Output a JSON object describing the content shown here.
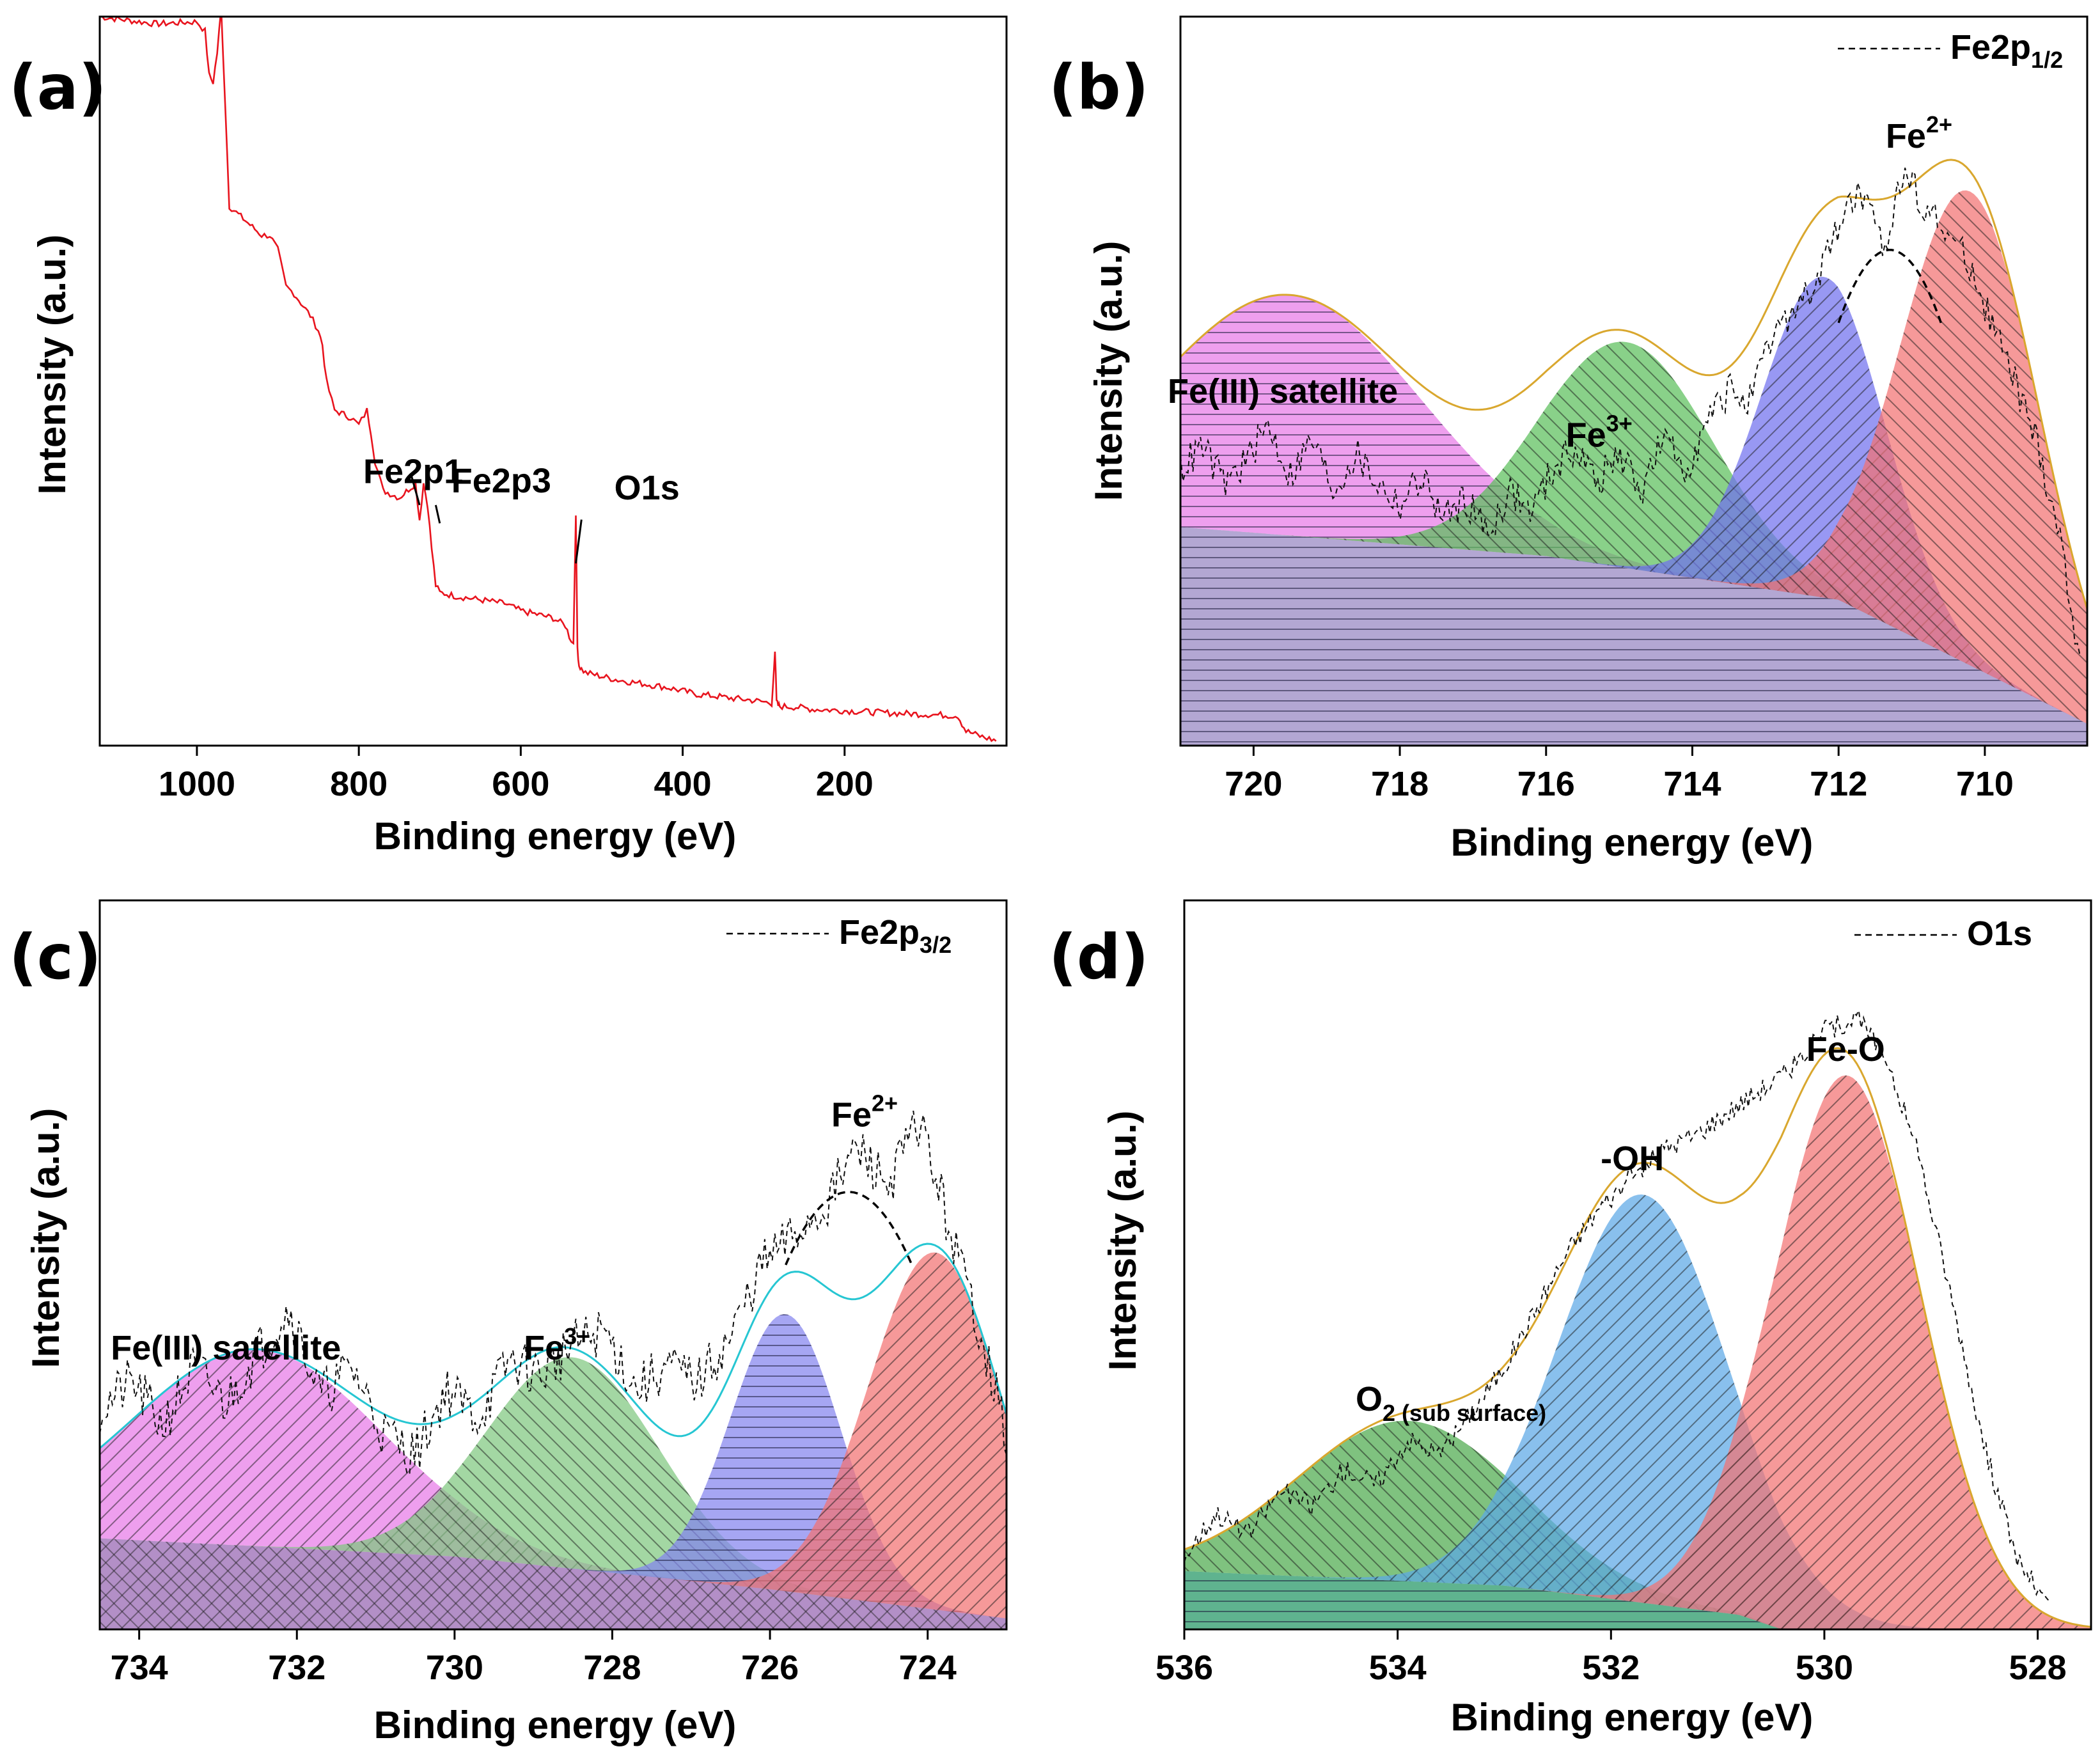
{
  "chart_data": [
    {
      "id": "a",
      "type": "line",
      "panel_label": "(a)",
      "title": "",
      "xlabel": "Binding energy (eV)",
      "ylabel": "Intensity (a.u.)",
      "xlim": [
        1120,
        0
      ],
      "ylim": [
        0,
        100
      ],
      "x_ticks": [
        1000,
        800,
        600,
        400,
        200
      ],
      "x_tick_labels": [
        "1000",
        "800",
        "600",
        "400",
        "200"
      ],
      "series_color": "#e8141e",
      "series": [
        {
          "style": "solid",
          "x": [
            1120,
            1050,
            1000,
            990,
            985,
            980,
            975,
            970,
            965,
            960,
            940,
            920,
            910,
            900,
            890,
            880,
            860,
            850,
            845,
            840,
            830,
            810,
            800,
            790,
            785,
            780,
            770,
            750,
            730,
            725,
            720,
            715,
            710,
            705,
            700,
            680,
            650,
            620,
            600,
            580,
            560,
            545,
            540,
            535,
            532,
            530,
            528,
            525,
            520,
            500,
            480,
            450,
            420,
            400,
            380,
            360,
            340,
            320,
            300,
            290,
            286,
            284,
            282,
            280,
            260,
            240,
            200,
            150,
            100,
            60,
            55,
            50,
            30,
            10
          ],
          "y": [
            100,
            99,
            99.3,
            98,
            92,
            91,
            95,
            101,
            88,
            74,
            72,
            70,
            70,
            68,
            63,
            62,
            59,
            57,
            55,
            50,
            46,
            45,
            44,
            46,
            43,
            39,
            35,
            34,
            36,
            31,
            36,
            33,
            27,
            22,
            21,
            20.5,
            20,
            19.5,
            18.5,
            18,
            17.5,
            16.5,
            15,
            14,
            32,
            13.5,
            11,
            10.5,
            10,
            9.5,
            9,
            8.5,
            8,
            7.5,
            7,
            6.8,
            6.5,
            6.3,
            6,
            5.8,
            13,
            6,
            5.5,
            5.4,
            5.3,
            5,
            4.8,
            4.5,
            4.3,
            4.1,
            3,
            2,
            1.2,
            0.6
          ]
        }
      ],
      "annotations": [
        {
          "text": "Fe2p1",
          "x": 725,
          "y": 36
        },
        {
          "text": "Fe2p3",
          "x": 711,
          "y": 33
        },
        {
          "text": "O1s",
          "x": 531,
          "y": 32
        }
      ]
    },
    {
      "id": "b",
      "type": "area",
      "panel_label": "(b)",
      "title": "",
      "xlabel": "Binding energy (eV)",
      "ylabel": "Intensity (a.u.)",
      "xlim": [
        721,
        708.6
      ],
      "ylim": [
        0,
        100
      ],
      "x_ticks": [
        720,
        718,
        716,
        714,
        712,
        710
      ],
      "x_tick_labels": [
        "720",
        "718",
        "716",
        "714",
        "712",
        "710"
      ],
      "legend": {
        "label": "Fe2p",
        "label_sub": "1/2",
        "placement": "top-right"
      },
      "background": {
        "x": [
          721,
          716,
          712,
          710,
          708.6
        ],
        "y": [
          30,
          26,
          20,
          10,
          3
        ],
        "color": "#9a8ac4"
      },
      "components": [
        {
          "name": "Fe(III) satellite",
          "center": 719.5,
          "height": 33,
          "sigma": 1.8,
          "color": "#e87ae8"
        },
        {
          "name": "Fe3+",
          "center": 714.9,
          "height": 31,
          "sigma": 1.2,
          "color": "#5cbf5c"
        },
        {
          "name": "Fe2+ (712.2)",
          "center": 712.2,
          "height": 44,
          "sigma": 0.85,
          "color": "#7070ee"
        },
        {
          "name": "Fe2+ (710.2)",
          "center": 710.2,
          "height": 65,
          "sigma": 0.95,
          "color": "#f27272"
        }
      ],
      "envelope_color": "#d9a72e",
      "raw_x": [
        721,
        720.7,
        720.4,
        720.1,
        719.8,
        719.5,
        719.2,
        718.9,
        718.6,
        718.3,
        718,
        717.7,
        717.4,
        717.1,
        716.8,
        716.5,
        716.2,
        715.9,
        715.6,
        715.3,
        715,
        714.7,
        714.4,
        714.1,
        713.8,
        713.5,
        713.2,
        712.9,
        712.6,
        712.3,
        712,
        711.7,
        711.4,
        711.1,
        710.8,
        710.5,
        710.2,
        709.9,
        709.6,
        709.3,
        709,
        708.7
      ],
      "raw_y": [
        38,
        41,
        36,
        39,
        44,
        37,
        42,
        35,
        40,
        36,
        33,
        37,
        31,
        34,
        29,
        35,
        32,
        38,
        41,
        36,
        40,
        35,
        42,
        38,
        44,
        49,
        47,
        56,
        60,
        63,
        72,
        76,
        68,
        79,
        74,
        70,
        66,
        58,
        50,
        42,
        30,
        12
      ],
      "fe2_peak": {
        "x": 711.3,
        "y": 72
      },
      "annotations": [
        {
          "text": "Fe(III) satellite",
          "x": 719.6,
          "y": 47
        },
        {
          "text": "Fe",
          "sup": "3+",
          "x": 715.1,
          "y": 41
        },
        {
          "text": "Fe",
          "sup": "2+",
          "x": 710.9,
          "y": 82
        }
      ]
    },
    {
      "id": "c",
      "type": "area",
      "panel_label": "(c)",
      "title": "",
      "xlabel": "Binding energy (eV)",
      "ylabel": "Intensity (a.u.)",
      "xlim": [
        734.5,
        723
      ],
      "ylim": [
        0,
        100
      ],
      "x_ticks": [
        734,
        732,
        730,
        728,
        726,
        724
      ],
      "x_tick_labels": [
        "734",
        "732",
        "730",
        "728",
        "726",
        "724"
      ],
      "legend": {
        "label": "Fe2p",
        "label_sub": "3/2",
        "placement": "top-right"
      },
      "background": {
        "x": [
          734.5,
          730,
          726,
          723
        ],
        "y": [
          12.5,
          10,
          5.5,
          1.5
        ],
        "color": "#9a6ab4"
      },
      "components": [
        {
          "name": "Fe(III) satellite",
          "center": 732.5,
          "height": 27,
          "sigma": 1.6,
          "color": "#e87ae8"
        },
        {
          "name": "Fe3+",
          "center": 728.5,
          "height": 29,
          "sigma": 1.1,
          "color": "#80c880"
        },
        {
          "name": "Fe2+ (725.8)",
          "center": 725.8,
          "height": 38,
          "sigma": 0.7,
          "color": "#8484ee"
        },
        {
          "name": "Fe2+ (723.9)",
          "center": 723.9,
          "height": 49,
          "sigma": 0.85,
          "color": "#f27272"
        }
      ],
      "envelope_color": "#26c6d2",
      "raw_x": [
        734.5,
        734.1,
        733.7,
        733.3,
        732.9,
        732.5,
        732.1,
        731.7,
        731.3,
        730.9,
        730.5,
        730.1,
        729.7,
        729.3,
        728.9,
        728.5,
        728.1,
        727.7,
        727.3,
        726.9,
        726.5,
        726.1,
        725.7,
        725.3,
        724.9,
        724.5,
        724.1,
        723.7,
        723.3,
        723
      ],
      "raw_y": [
        30,
        34,
        28,
        36,
        31,
        38,
        44,
        32,
        36,
        27,
        24,
        33,
        29,
        37,
        35,
        39,
        41,
        33,
        36,
        34,
        40,
        50,
        54,
        58,
        66,
        61,
        70,
        54,
        40,
        26
      ],
      "fe2_peak": {
        "x": 725,
        "y": 64
      },
      "annotations": [
        {
          "text": "Fe(III) satellite",
          "x": 732.9,
          "y": 37
        },
        {
          "text": "Fe",
          "sup": "3+",
          "x": 728.7,
          "y": 37
        },
        {
          "text": "Fe",
          "sup": "2+",
          "x": 724.8,
          "y": 69
        }
      ]
    },
    {
      "id": "d",
      "type": "area",
      "panel_label": "(d)",
      "title": "",
      "xlabel": "Binding energy (eV)",
      "ylabel": "Intensity (a.u.)",
      "xlim": [
        536,
        527.5
      ],
      "ylim": [
        0,
        100
      ],
      "x_ticks": [
        536,
        534,
        532,
        530,
        528
      ],
      "x_tick_labels": [
        "536",
        "534",
        "532",
        "530",
        "528"
      ],
      "legend": {
        "label": "O1s",
        "label_sub": "",
        "placement": "top-right"
      },
      "background": {
        "x": [
          536,
          533,
          530.8,
          530.4
        ],
        "y": [
          8,
          6,
          2,
          0
        ],
        "color": "#2a9a6a"
      },
      "components": [
        {
          "name": "O2 (sub surface)",
          "center": 533.9,
          "height": 22,
          "sigma": 1.05,
          "color": "#4eab4e"
        },
        {
          "name": "-OH",
          "center": 531.7,
          "height": 56,
          "sigma": 0.8,
          "color": "#5ba8e6"
        },
        {
          "name": "Fe-O",
          "center": 529.8,
          "height": 76,
          "sigma": 0.7,
          "color": "#f27272"
        }
      ],
      "envelope_color": "#d9a72e",
      "raw_x": [
        536,
        535.7,
        535.4,
        535.1,
        534.8,
        534.5,
        534.2,
        533.9,
        533.6,
        533.3,
        533,
        532.7,
        532.4,
        532.1,
        531.8,
        531.5,
        531.2,
        530.9,
        530.6,
        530.3,
        530,
        529.7,
        529.4,
        529.1,
        528.8,
        528.5,
        528.2,
        527.9
      ],
      "raw_y": [
        10,
        16,
        13,
        19,
        17,
        22,
        20,
        26,
        24,
        30,
        36,
        44,
        52,
        58,
        62,
        66,
        68,
        71,
        74,
        77,
        82,
        84,
        78,
        64,
        45,
        25,
        10,
        3
      ],
      "annotations": [
        {
          "text": "O",
          "sub": "2 (sub surface)",
          "x": 533.5,
          "y": 30
        },
        {
          "text": "-OH",
          "x": 531.8,
          "y": 63
        },
        {
          "text": "Fe-O",
          "x": 529.8,
          "y": 78
        }
      ]
    }
  ]
}
